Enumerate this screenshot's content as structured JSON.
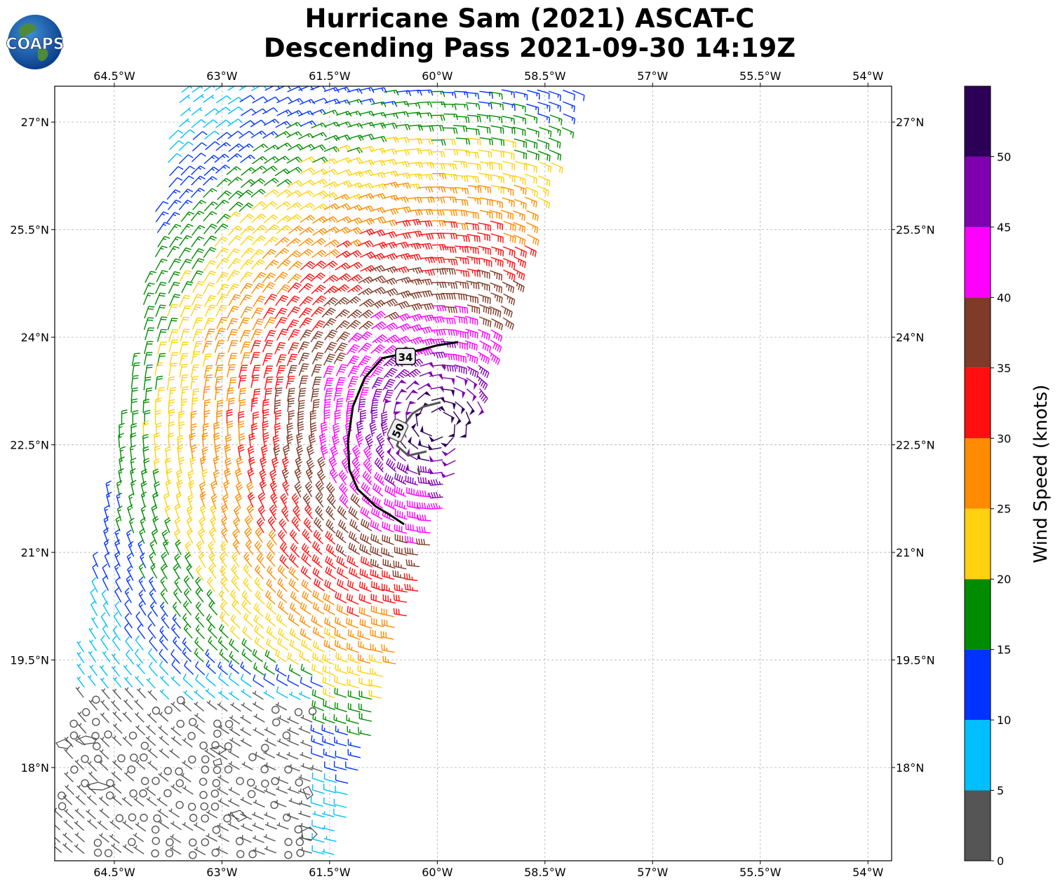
{
  "header": {
    "title_line1": "Hurricane Sam (2021) ASCAT-C",
    "title_line2": "Descending Pass 2021-09-30 14:19Z",
    "logo_text": "COAPS"
  },
  "map": {
    "lon_ticks": [
      "64.5°W",
      "63°W",
      "61.5°W",
      "60°W",
      "58.5°W",
      "57°W",
      "55.5°W",
      "54°W"
    ],
    "lat_ticks": [
      "27°N",
      "25.5°N",
      "24°N",
      "22.5°N",
      "21°N",
      "19.5°N",
      "18°N"
    ],
    "contour_labels": [
      "34",
      "50"
    ],
    "extent": {
      "lon_min": -65.33,
      "lon_max": -53.67,
      "lat_min": 16.7,
      "lat_max": 27.5
    },
    "storm_center": {
      "lon": -60.0,
      "lat": 22.8
    },
    "gridlines": true
  },
  "colorbar": {
    "label": "Wind Speed (knots)",
    "tick_labels": [
      "0",
      "5",
      "10",
      "15",
      "20",
      "25",
      "30",
      "35",
      "40",
      "45",
      "50"
    ],
    "bins": [
      {
        "min": 0,
        "max": 5,
        "color": "#555555"
      },
      {
        "min": 5,
        "max": 10,
        "color": "#00bfff"
      },
      {
        "min": 10,
        "max": 15,
        "color": "#0033ff"
      },
      {
        "min": 15,
        "max": 20,
        "color": "#008c00"
      },
      {
        "min": 20,
        "max": 25,
        "color": "#ffd20f"
      },
      {
        "min": 25,
        "max": 30,
        "color": "#ff8c00"
      },
      {
        "min": 30,
        "max": 35,
        "color": "#ff0f0f"
      },
      {
        "min": 35,
        "max": 40,
        "color": "#7f3a28"
      },
      {
        "min": 40,
        "max": 45,
        "color": "#ff00ff"
      },
      {
        "min": 45,
        "max": 50,
        "color": "#8000b0"
      },
      {
        "min": 50,
        "max": 55,
        "color": "#2d0057"
      }
    ]
  }
}
